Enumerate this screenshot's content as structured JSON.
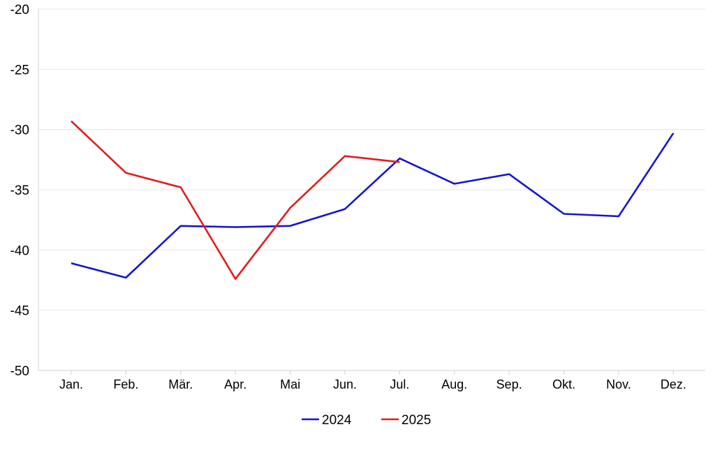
{
  "chart_data": {
    "type": "line",
    "categories": [
      "Jan.",
      "Feb.",
      "Mär.",
      "Apr.",
      "Mai",
      "Jun.",
      "Jul.",
      "Aug.",
      "Sep.",
      "Okt.",
      "Nov.",
      "Dez."
    ],
    "ylim": [
      -50,
      -20
    ],
    "yticks": [
      -20,
      -25,
      -30,
      -35,
      -40,
      -45,
      -50
    ],
    "grid": true,
    "legend_position": "bottom-center",
    "series": [
      {
        "name": "2024",
        "color": "#1414d2",
        "values": [
          -41.1,
          -42.3,
          -38.0,
          -38.1,
          -38.0,
          -36.6,
          -32.4,
          -34.5,
          -33.7,
          -37.0,
          -37.2,
          -30.3
        ]
      },
      {
        "name": "2025",
        "color": "#e31b1b",
        "values": [
          -29.3,
          -33.6,
          -34.8,
          -42.4,
          -36.5,
          -32.2,
          -32.7,
          null,
          null,
          null,
          null,
          null
        ]
      }
    ]
  }
}
